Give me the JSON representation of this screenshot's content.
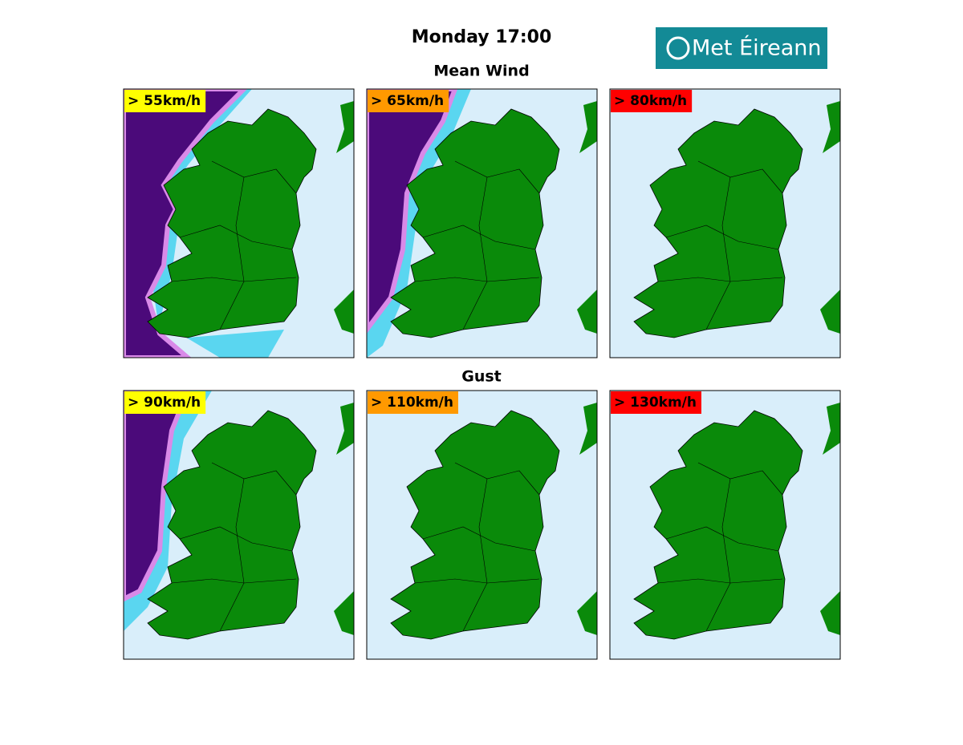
{
  "header": {
    "title": "Monday 17:00",
    "logo": "Met Éireann"
  },
  "sections": [
    {
      "title": "Mean Wind",
      "panels": [
        {
          "label": "> 55km/h",
          "color": "#ffff00"
        },
        {
          "label": "> 65km/h",
          "color": "#ff9900"
        },
        {
          "label": "> 80km/h",
          "color": "#ff0000"
        }
      ]
    },
    {
      "title": "Gust",
      "panels": [
        {
          "label": "> 90km/h",
          "color": "#ffff00"
        },
        {
          "label": "> 110km/h",
          "color": "#ff9900"
        },
        {
          "label": "> 130km/h",
          "color": "#ff0000"
        }
      ]
    }
  ]
}
